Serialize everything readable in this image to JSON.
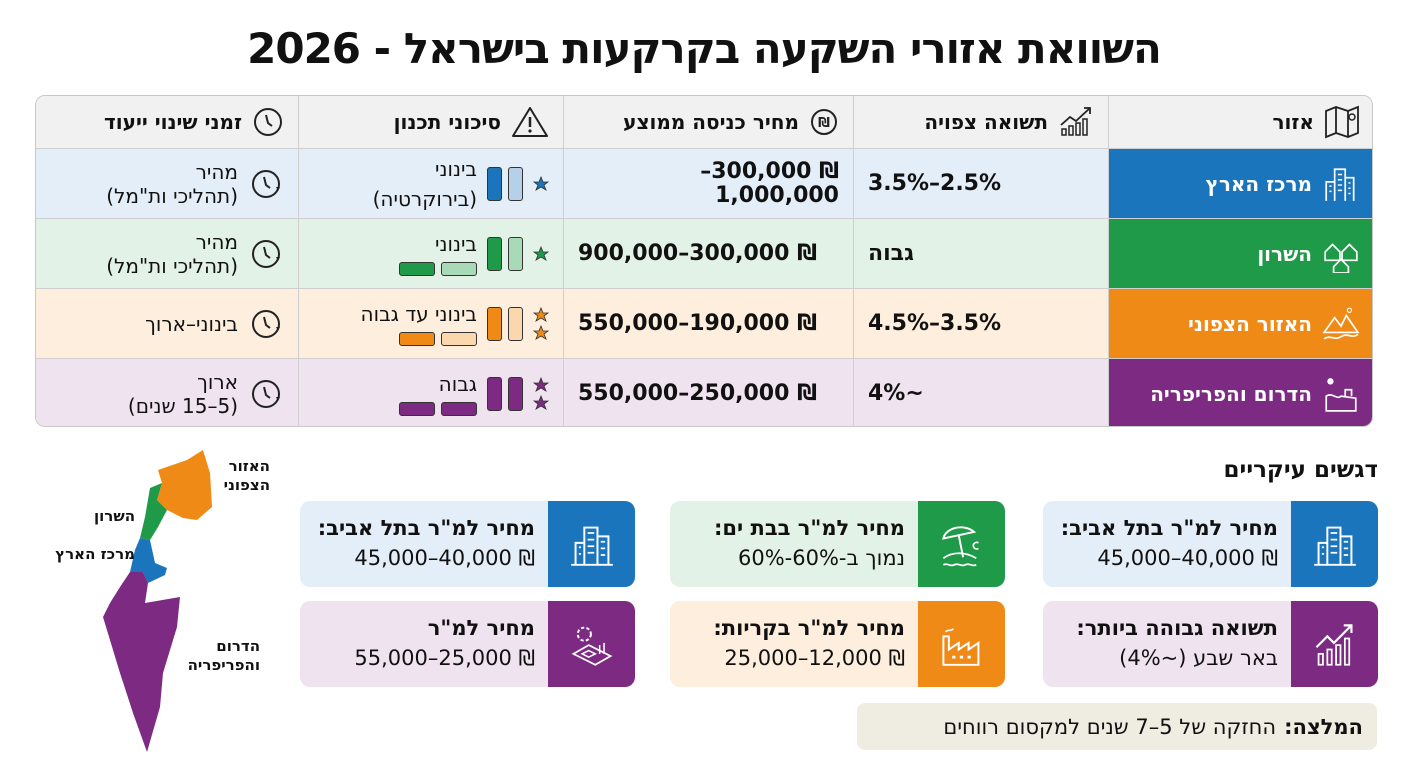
{
  "title": "השוואת אזורי השקעה בקרקעות בישראל - 2026",
  "colors": {
    "center": "#1b75bc",
    "sharon": "#1f9a48",
    "north": "#ef8a17",
    "south": "#7d2a83"
  },
  "table": {
    "headers": {
      "region": "אזור",
      "return": "תשואה צפויה",
      "price": "מחיר כניסה ממוצע",
      "risk": "סיכוני תכנון",
      "time": "זמני שינוי ייעוד"
    },
    "header_icons": {
      "region": "map-icon",
      "return": "growth-chart-icon",
      "price": "shekel-coin-icon",
      "risk": "warning-icon",
      "time": "clock-icon"
    },
    "rows": [
      {
        "region": "מרכז הארץ",
        "icon": "city-buildings-icon",
        "return": "2.5%–3.5%",
        "price": "₪ 300,000–1,000,000",
        "risk": "בינוני",
        "risk_note": "(בירוקרטיה)",
        "time": "מהיר",
        "time_note": "(תהליכי ות\"מל)"
      },
      {
        "region": "השרון",
        "icon": "houses-icon",
        "return": "גבוה",
        "price": "₪ 300,000–900,000",
        "risk": "בינוני",
        "risk_note": "",
        "time": "מהיר",
        "time_note": "(תהליכי ות\"מל)"
      },
      {
        "region": "האזור הצפוני",
        "icon": "mountains-icon",
        "return": "3.5%–4.5%",
        "price": "₪ 190,000–550,000",
        "risk": "בינוני עד גבוה",
        "risk_note": "",
        "time": "בינוני–ארוך",
        "time_note": ""
      },
      {
        "region": "הדרום והפריפריה",
        "icon": "desert-town-icon",
        "return": "~4%",
        "price": "₪ 250,000–550,000",
        "risk": "גבוה",
        "risk_note": "",
        "time": "ארוך",
        "time_note": "(5–15 שנים)"
      }
    ]
  },
  "highlights": {
    "title": "דגשים עיקריים",
    "cards": [
      {
        "title": "מחיר למ\"ר בתל אביב:",
        "value": "₪ 40,000–45,000",
        "icon": "city-buildings-icon"
      },
      {
        "title": "מחיר למ\"ר בבת ים:",
        "value": "נמוך ב-60%-60%",
        "icon": "beach-umbrella-icon"
      },
      {
        "title": "מחיר למ\"ר בתל אביב:",
        "value": "₪ 40,000–45,000",
        "icon": "city-buildings-icon"
      },
      {
        "title": "תשואה גבוהה ביותר:",
        "value": "באר שבע (~4%)",
        "icon": "growth-chart-icon"
      },
      {
        "title": "מחיר למ\"ר בקריות:",
        "value": "₪ 12,000–25,000",
        "icon": "factory-icon"
      },
      {
        "title": "מחיר למ\"ר",
        "value": "₪ 25,000–55,000",
        "icon": "gear-plan-icon"
      }
    ],
    "recommendation_label": "המלצה:",
    "recommendation": "החזקה של 5–7 שנים למקסום רווחים"
  },
  "map": {
    "labels": {
      "north": "האזור\nהצפוני",
      "sharon": "השרון",
      "center": "מרכז הארץ",
      "south": "הדרום\nוהפריפריה"
    }
  }
}
